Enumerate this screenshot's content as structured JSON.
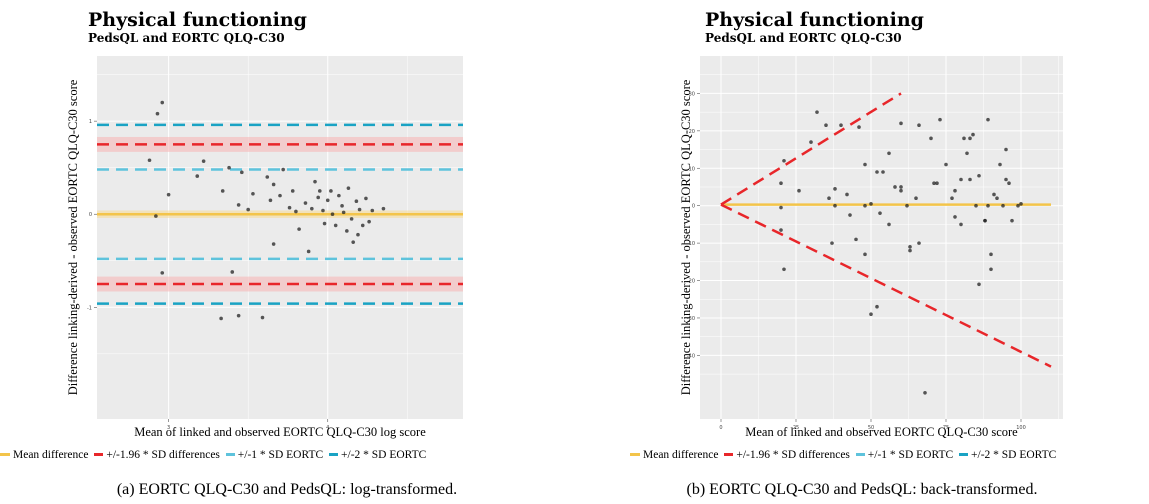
{
  "chart_data": [
    {
      "type": "scatter",
      "title": "Physical functioning",
      "subtitle": "PedsQL and EORTC QLQ-C30",
      "xlabel": "Mean of linked and observed EORTC QLQ-C30 log score",
      "ylabel": "Difference linking-derived - observed EORTC QLQ-C30 score",
      "xlim": [
        2.55,
        4.85
      ],
      "ylim": [
        -2.2,
        1.7
      ],
      "xticks": [
        3,
        4
      ],
      "yticks": [
        1,
        0,
        -1
      ],
      "grid": true,
      "legend_position": "bottom",
      "mean_difference": 0.0,
      "loa_1_96": [
        0.75,
        -0.75
      ],
      "loa_1_96_band": 0.08,
      "sd_1": [
        0.48,
        -0.48
      ],
      "sd_2": [
        0.96,
        -0.96
      ],
      "points": [
        [
          2.93,
          1.08
        ],
        [
          2.96,
          1.2
        ],
        [
          2.88,
          0.58
        ],
        [
          2.92,
          -0.02
        ],
        [
          3.0,
          0.21
        ],
        [
          2.96,
          -0.63
        ],
        [
          3.18,
          0.41
        ],
        [
          3.22,
          0.57
        ],
        [
          3.34,
          0.25
        ],
        [
          3.4,
          -0.62
        ],
        [
          3.38,
          0.5
        ],
        [
          3.44,
          0.1
        ],
        [
          3.46,
          0.45
        ],
        [
          3.5,
          0.05
        ],
        [
          3.53,
          0.22
        ],
        [
          3.59,
          -1.11
        ],
        [
          3.62,
          0.4
        ],
        [
          3.64,
          0.15
        ],
        [
          3.66,
          -0.32
        ],
        [
          3.7,
          0.2
        ],
        [
          3.66,
          0.32
        ],
        [
          3.72,
          0.48
        ],
        [
          3.76,
          0.07
        ],
        [
          3.78,
          0.25
        ],
        [
          3.8,
          0.03
        ],
        [
          3.82,
          -0.16
        ],
        [
          3.86,
          0.12
        ],
        [
          3.88,
          -0.4
        ],
        [
          3.9,
          0.06
        ],
        [
          3.92,
          0.35
        ],
        [
          3.94,
          0.18
        ],
        [
          3.95,
          0.25
        ],
        [
          3.97,
          0.04
        ],
        [
          3.98,
          -0.1
        ],
        [
          4.0,
          0.15
        ],
        [
          4.02,
          0.25
        ],
        [
          4.03,
          0.0
        ],
        [
          4.05,
          -0.12
        ],
        [
          4.07,
          0.2
        ],
        [
          4.09,
          0.09
        ],
        [
          4.1,
          0.02
        ],
        [
          4.12,
          -0.18
        ],
        [
          4.13,
          0.28
        ],
        [
          4.15,
          -0.05
        ],
        [
          4.16,
          -0.3
        ],
        [
          4.18,
          0.14
        ],
        [
          4.19,
          -0.22
        ],
        [
          4.2,
          0.05
        ],
        [
          4.22,
          -0.12
        ],
        [
          4.24,
          0.17
        ],
        [
          4.26,
          -0.08
        ],
        [
          4.28,
          0.04
        ],
        [
          3.44,
          -1.09
        ],
        [
          3.33,
          -1.12
        ],
        [
          4.35,
          0.06
        ]
      ]
    },
    {
      "type": "scatter",
      "title": "Physical functioning",
      "subtitle": "PedsQL and EORTC QLQ-C30",
      "xlabel": "Mean of linked and observed EORTC QLQ-C30 score",
      "ylabel": "Difference linking-derived - observed EORTC QLQ-C30 score",
      "xlim": [
        -7,
        114
      ],
      "ylim": [
        -57,
        40
      ],
      "xticks": [
        0,
        25,
        50,
        75,
        100
      ],
      "yticks": [
        30,
        20,
        10,
        0,
        -10,
        -20,
        -30,
        -40
      ],
      "grid": true,
      "legend_position": "bottom",
      "mean_difference": 0.3,
      "upper_loa": [
        [
          0,
          0.3
        ],
        [
          60,
          30
        ]
      ],
      "lower_loa": [
        [
          0,
          0.3
        ],
        [
          110,
          -43
        ]
      ],
      "points": [
        [
          20,
          -6.5
        ],
        [
          20,
          -0.5
        ],
        [
          20,
          6
        ],
        [
          21,
          -17
        ],
        [
          21,
          12
        ],
        [
          26,
          4
        ],
        [
          30,
          17
        ],
        [
          32,
          25
        ],
        [
          35,
          21.5
        ],
        [
          36,
          2
        ],
        [
          37,
          -10
        ],
        [
          38,
          0
        ],
        [
          38,
          4.5
        ],
        [
          40,
          21.5
        ],
        [
          42,
          3
        ],
        [
          43,
          -2.5
        ],
        [
          46,
          21
        ],
        [
          48,
          0
        ],
        [
          48,
          -13
        ],
        [
          48,
          11
        ],
        [
          50,
          0.5
        ],
        [
          50,
          -29
        ],
        [
          52,
          -27
        ],
        [
          52,
          9
        ],
        [
          53,
          -2
        ],
        [
          54,
          9
        ],
        [
          56,
          -5
        ],
        [
          56,
          14
        ],
        [
          58,
          5
        ],
        [
          60,
          22
        ],
        [
          60,
          4
        ],
        [
          62,
          0
        ],
        [
          63,
          -11
        ],
        [
          63,
          -12
        ],
        [
          65,
          2
        ],
        [
          66,
          -10
        ],
        [
          66,
          21.5
        ],
        [
          68,
          -50
        ],
        [
          71,
          6
        ],
        [
          72,
          6
        ],
        [
          73,
          23
        ],
        [
          75,
          11
        ],
        [
          77,
          2
        ],
        [
          78,
          -3
        ],
        [
          78,
          4
        ],
        [
          80,
          -5
        ],
        [
          80,
          7
        ],
        [
          81,
          18
        ],
        [
          82,
          14
        ],
        [
          83,
          18
        ],
        [
          83,
          7
        ],
        [
          85,
          0
        ],
        [
          86,
          8
        ],
        [
          88,
          -4
        ],
        [
          88,
          -4
        ],
        [
          89,
          23
        ],
        [
          89,
          0
        ],
        [
          90,
          -13
        ],
        [
          92,
          2
        ],
        [
          94,
          0
        ],
        [
          95,
          15
        ],
        [
          96,
          6
        ],
        [
          99,
          0
        ],
        [
          90,
          -17
        ],
        [
          86,
          -21
        ],
        [
          97,
          -4
        ],
        [
          93,
          11
        ],
        [
          91,
          3
        ],
        [
          84,
          19
        ],
        [
          60,
          5
        ],
        [
          100,
          0.5
        ],
        [
          95,
          7
        ],
        [
          70,
          18
        ],
        [
          45,
          -9
        ]
      ]
    }
  ],
  "legend": {
    "mean_label": "Mean difference",
    "loa_label": "+/-1.96 * SD differences",
    "sd1_label": "+/-1 * SD EORTC",
    "sd2_label": "+/-2 * SD EORTC"
  },
  "captions": {
    "a": "(a) EORTC QLQ-C30 and PedsQL: log-transformed.",
    "b": "(b) EORTC QLQ-C30 and PedsQL: back-transformed."
  },
  "colors": {
    "mean": "#f3c44a",
    "loa": "#e8262a",
    "sd1": "#5ec3dc",
    "sd2": "#1aa3c4",
    "panel": "#ebebeb",
    "grid": "#ffffff",
    "point": "#222222"
  }
}
